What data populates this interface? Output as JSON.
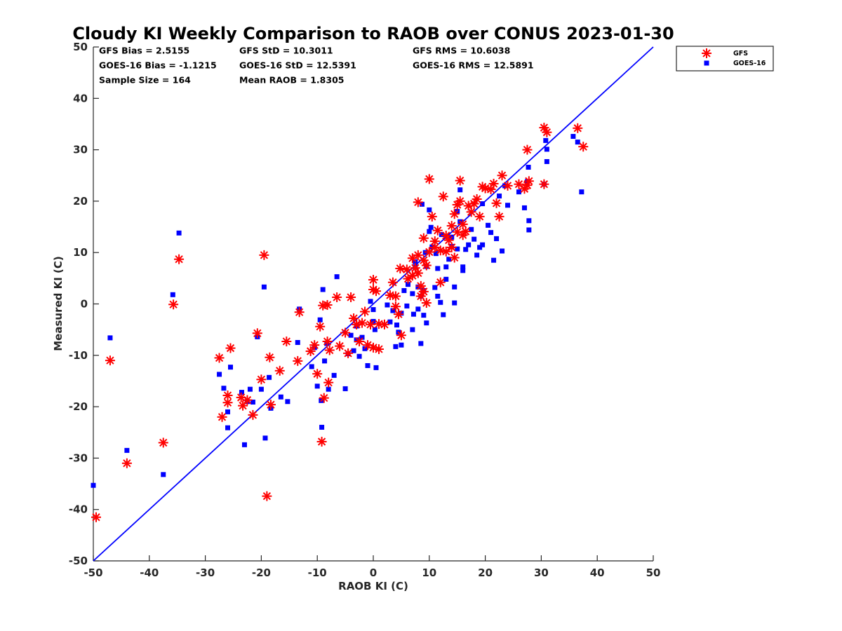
{
  "chart_data": {
    "type": "scatter",
    "title": "Cloudy KI Weekly Comparison to RAOB over CONUS 2023-01-30",
    "xlabel": "RAOB KI (C)",
    "ylabel": "Measured KI (C)",
    "xlim": [
      -50,
      50
    ],
    "ylim": [
      -50,
      50
    ],
    "xticks": [
      "-50",
      "-40",
      "-30",
      "-20",
      "-10",
      "0",
      "10",
      "20",
      "30",
      "40",
      "50"
    ],
    "yticks": [
      "-50",
      "-40",
      "-30",
      "-20",
      "-10",
      "0",
      "10",
      "20",
      "30",
      "40",
      "50"
    ],
    "grid": false,
    "legend_position": "outside-top-right",
    "reference_line": {
      "x": [
        -50,
        50
      ],
      "y": [
        -50,
        50
      ],
      "color": "#0000ff"
    },
    "stats": [
      [
        "GFS Bias = 2.5155",
        "GFS StD = 10.3011",
        "GFS RMS = 10.6038"
      ],
      [
        "GOES-16 Bias = -1.1215",
        "GOES-16 StD = 12.5391",
        "GOES-16 RMS = 12.5891"
      ],
      [
        "Sample Size = 164",
        "Mean RAOB = 1.8305",
        ""
      ]
    ],
    "series": [
      {
        "name": "GFS",
        "marker": "asterisk",
        "color": "#ff0000",
        "points": [
          [
            -49.5,
            -41.5
          ],
          [
            -47,
            -11
          ],
          [
            -44,
            -31
          ],
          [
            -37.5,
            -27
          ],
          [
            -35.7,
            -0.1
          ],
          [
            -34.7,
            8.7
          ],
          [
            -27.5,
            -10.5
          ],
          [
            -27,
            -22
          ],
          [
            -26,
            -17.8
          ],
          [
            -26,
            -19.2
          ],
          [
            -25.5,
            -8.6
          ],
          [
            -23.6,
            -18.2
          ],
          [
            -23.3,
            -19.8
          ],
          [
            -22.5,
            -18.7
          ],
          [
            -21.5,
            -21.6
          ],
          [
            -20.7,
            -5.7
          ],
          [
            -20,
            -14.7
          ],
          [
            -19.5,
            9.5
          ],
          [
            -19,
            -37.4
          ],
          [
            -18.5,
            -10.4
          ],
          [
            -18.3,
            -19.6
          ],
          [
            -16.7,
            -13
          ],
          [
            -15.5,
            -7.3
          ],
          [
            -13.5,
            -11.1
          ],
          [
            -13.2,
            -1.6
          ],
          [
            -11.2,
            -9.2
          ],
          [
            -10.5,
            -8
          ],
          [
            -10,
            -13.6
          ],
          [
            -9.5,
            -4.4
          ],
          [
            -9.2,
            -26.8
          ],
          [
            -9,
            -0.3
          ],
          [
            -8.8,
            -18.3
          ],
          [
            -8.2,
            -7.3
          ],
          [
            -8.2,
            -0.2
          ],
          [
            -8,
            -15.3
          ],
          [
            -7.8,
            -9
          ],
          [
            -6.5,
            1.3
          ],
          [
            -6,
            -8.2
          ],
          [
            -5,
            -5.6
          ],
          [
            -4.5,
            -9.6
          ],
          [
            -4,
            1.3
          ],
          [
            -3.5,
            -2.8
          ],
          [
            -3,
            -4
          ],
          [
            -2.5,
            -7.3
          ],
          [
            -2,
            -3.7
          ],
          [
            -1.5,
            -1.5
          ],
          [
            -1,
            -8
          ],
          [
            -0.5,
            -4
          ],
          [
            0,
            -8.5
          ],
          [
            0,
            2.8
          ],
          [
            0,
            4.7
          ],
          [
            0.5,
            2.5
          ],
          [
            1,
            -8.8
          ],
          [
            1,
            -3.9
          ],
          [
            2,
            -4
          ],
          [
            3,
            1.7
          ],
          [
            3.5,
            4.2
          ],
          [
            4,
            -0.5
          ],
          [
            4,
            1.5
          ],
          [
            4.5,
            -2
          ],
          [
            4.8,
            6.9
          ],
          [
            5,
            -6.1
          ],
          [
            6,
            6.7
          ],
          [
            6.2,
            4.9
          ],
          [
            7,
            8.9
          ],
          [
            7,
            5.5
          ],
          [
            7.5,
            7
          ],
          [
            8,
            9.5
          ],
          [
            8,
            6
          ],
          [
            8,
            19.8
          ],
          [
            8.5,
            3.5
          ],
          [
            8.5,
            1.5
          ],
          [
            9,
            8.5
          ],
          [
            9,
            2.4
          ],
          [
            9,
            12.8
          ],
          [
            9.5,
            7.5
          ],
          [
            9.5,
            0.2
          ],
          [
            10,
            10.1
          ],
          [
            10,
            24.3
          ],
          [
            10.5,
            17
          ],
          [
            11,
            12.2
          ],
          [
            11,
            11
          ],
          [
            11.5,
            14.3
          ],
          [
            12,
            10.4
          ],
          [
            12,
            4.2
          ],
          [
            12.5,
            20.9
          ],
          [
            13,
            13.3
          ],
          [
            13,
            10.2
          ],
          [
            13.5,
            12.4
          ],
          [
            14,
            15.2
          ],
          [
            14,
            11
          ],
          [
            14.5,
            17.5
          ],
          [
            14.5,
            9
          ],
          [
            15,
            19.3
          ],
          [
            15,
            14
          ],
          [
            15.5,
            24
          ],
          [
            15.5,
            20
          ],
          [
            16,
            13.4
          ],
          [
            16,
            15.5
          ],
          [
            16.5,
            14.1
          ],
          [
            17,
            19.1
          ],
          [
            17.5,
            17.9
          ],
          [
            18,
            19.5
          ],
          [
            18.5,
            20.4
          ],
          [
            19,
            17
          ],
          [
            19.5,
            22.8
          ],
          [
            20,
            22.5
          ],
          [
            21,
            22.3
          ],
          [
            21.5,
            23.4
          ],
          [
            22,
            19.6
          ],
          [
            22.5,
            17
          ],
          [
            23,
            25
          ],
          [
            24,
            23
          ],
          [
            26,
            23.3
          ],
          [
            27,
            22.4
          ],
          [
            27.5,
            23.1
          ],
          [
            27.5,
            30
          ],
          [
            27.8,
            23.9
          ],
          [
            30.5,
            23.3
          ],
          [
            30.5,
            34.3
          ],
          [
            31,
            33.4
          ],
          [
            36.5,
            34.2
          ],
          [
            37.5,
            30.6
          ]
        ]
      },
      {
        "name": "GOES-16",
        "marker": "square",
        "color": "#0000ff",
        "points": [
          [
            -50,
            -35.3
          ],
          [
            -47,
            -6.6
          ],
          [
            -44,
            -28.5
          ],
          [
            -37.5,
            -33.2
          ],
          [
            -35.8,
            1.8
          ],
          [
            -34.7,
            13.8
          ],
          [
            -27.5,
            -13.7
          ],
          [
            -26.7,
            -16.4
          ],
          [
            -26,
            -24.1
          ],
          [
            -26,
            -21
          ],
          [
            -25.5,
            -12.3
          ],
          [
            -23.5,
            -17.2
          ],
          [
            -23,
            -27.4
          ],
          [
            -22.5,
            -19
          ],
          [
            -22,
            -16.6
          ],
          [
            -21.5,
            -19.1
          ],
          [
            -20.7,
            -6.4
          ],
          [
            -20,
            -16.6
          ],
          [
            -19.5,
            3.3
          ],
          [
            -19.3,
            -26.1
          ],
          [
            -18.6,
            -14.3
          ],
          [
            -18.3,
            -20.3
          ],
          [
            -16.5,
            -18.1
          ],
          [
            -15.3,
            -19
          ],
          [
            -13.5,
            -7.5
          ],
          [
            -13.2,
            -1
          ],
          [
            -11,
            -12.2
          ],
          [
            -10.5,
            -8.5
          ],
          [
            -10,
            -16
          ],
          [
            -9.5,
            -3.1
          ],
          [
            -9.3,
            -18.8
          ],
          [
            -9.2,
            -24
          ],
          [
            -9,
            2.8
          ],
          [
            -8.7,
            -11.1
          ],
          [
            -8.3,
            -7.7
          ],
          [
            -8,
            -16.6
          ],
          [
            -7,
            -13.9
          ],
          [
            -6.5,
            5.3
          ],
          [
            -5,
            -16.5
          ],
          [
            -4.5,
            -9.7
          ],
          [
            -4,
            -6.1
          ],
          [
            -3.5,
            -9.1
          ],
          [
            -3,
            -7
          ],
          [
            -3,
            -4.3
          ],
          [
            -2.5,
            -10.2
          ],
          [
            -2,
            -6.5
          ],
          [
            -1.5,
            -8.7
          ],
          [
            -1,
            -12
          ],
          [
            -0.5,
            0.5
          ],
          [
            0,
            -3.4
          ],
          [
            0,
            -1.1
          ],
          [
            0.3,
            -5
          ],
          [
            0.5,
            -12.4
          ],
          [
            2.5,
            -0.2
          ],
          [
            3,
            -3.5
          ],
          [
            3.5,
            -1.3
          ],
          [
            4,
            -8.3
          ],
          [
            4.2,
            -4.1
          ],
          [
            4.5,
            -5.5
          ],
          [
            5,
            -8
          ],
          [
            5,
            -1.8
          ],
          [
            5.5,
            2.6
          ],
          [
            6,
            -0.4
          ],
          [
            6.2,
            3.8
          ],
          [
            7,
            -5
          ],
          [
            7,
            2
          ],
          [
            7.2,
            -2
          ],
          [
            7.5,
            7.2
          ],
          [
            7.5,
            8.2
          ],
          [
            8,
            -1
          ],
          [
            8,
            3.3
          ],
          [
            8.5,
            1.5
          ],
          [
            8.5,
            -7.7
          ],
          [
            8.7,
            19.4
          ],
          [
            9,
            2.6
          ],
          [
            9,
            -2.2
          ],
          [
            9.3,
            10
          ],
          [
            9.5,
            -3.7
          ],
          [
            9.5,
            7.3
          ],
          [
            10,
            18.3
          ],
          [
            10,
            14.1
          ],
          [
            10.3,
            14.9
          ],
          [
            10.5,
            11.1
          ],
          [
            11,
            3.2
          ],
          [
            11.2,
            9.8
          ],
          [
            11.5,
            1.5
          ],
          [
            11.5,
            6.9
          ],
          [
            12,
            0.3
          ],
          [
            12.2,
            13.5
          ],
          [
            12.5,
            -2.1
          ],
          [
            13,
            7.2
          ],
          [
            13,
            4.8
          ],
          [
            13.5,
            8.7
          ],
          [
            14,
            11.2
          ],
          [
            14,
            13
          ],
          [
            14.5,
            3.3
          ],
          [
            14.5,
            0.2
          ],
          [
            15,
            10.7
          ],
          [
            15,
            18
          ],
          [
            15.5,
            22.2
          ],
          [
            15.5,
            16
          ],
          [
            16,
            7.2
          ],
          [
            16,
            6.5
          ],
          [
            16.5,
            10.6
          ],
          [
            17,
            11.5
          ],
          [
            17.5,
            14.5
          ],
          [
            18,
            12.6
          ],
          [
            18.5,
            9.5
          ],
          [
            19,
            11
          ],
          [
            19.5,
            11.5
          ],
          [
            19.5,
            19.5
          ],
          [
            20.5,
            15.3
          ],
          [
            21,
            13.9
          ],
          [
            21.5,
            8.5
          ],
          [
            22,
            12.7
          ],
          [
            22.5,
            21
          ],
          [
            23,
            10.3
          ],
          [
            23.5,
            23
          ],
          [
            24,
            19.2
          ],
          [
            26,
            21.8
          ],
          [
            27,
            18.7
          ],
          [
            27.5,
            23.8
          ],
          [
            27.7,
            26.6
          ],
          [
            27.8,
            16.2
          ],
          [
            27.8,
            14.4
          ],
          [
            30.5,
            23.3
          ],
          [
            30.8,
            31.8
          ],
          [
            31,
            30.1
          ],
          [
            31,
            27.7
          ],
          [
            35.7,
            32.6
          ],
          [
            36.5,
            31.5
          ],
          [
            37.2,
            21.8
          ]
        ]
      }
    ]
  }
}
